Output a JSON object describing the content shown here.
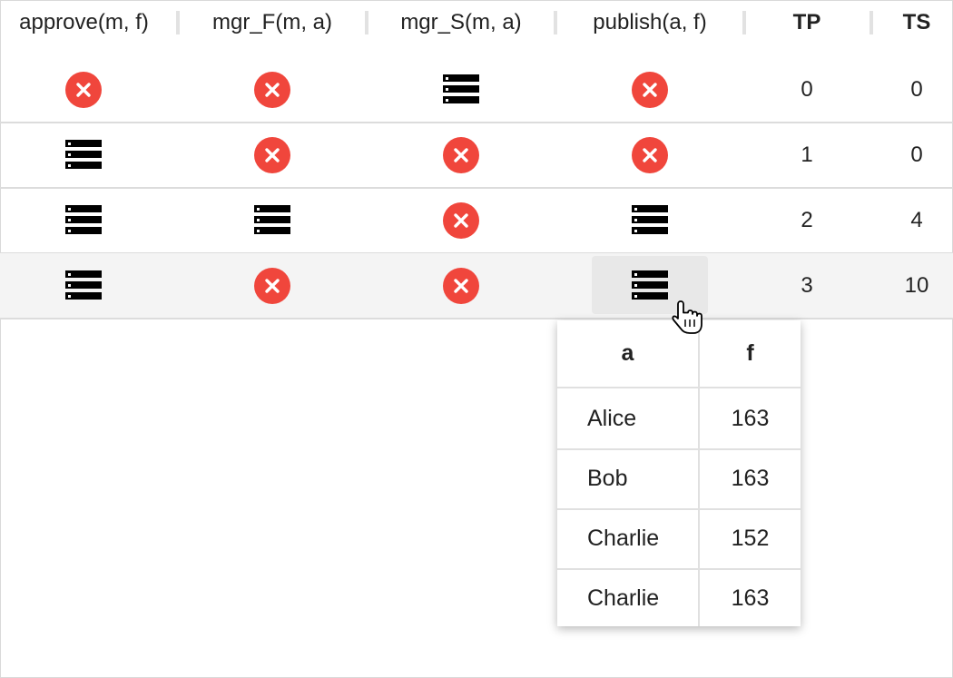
{
  "columns": [
    {
      "label": "approve(m, f)",
      "bold": false
    },
    {
      "label": "mgr_F(m, a)",
      "bold": false
    },
    {
      "label": "mgr_S(m, a)",
      "bold": false
    },
    {
      "label": "publish(a, f)",
      "bold": false
    },
    {
      "label": "TP",
      "bold": true
    },
    {
      "label": "TS",
      "bold": true
    }
  ],
  "rows": [
    {
      "cells": [
        "x-circle-icon",
        "x-circle-icon",
        "list-icon",
        "x-circle-icon"
      ],
      "tp": "0",
      "ts": "0"
    },
    {
      "cells": [
        "list-icon",
        "x-circle-icon",
        "x-circle-icon",
        "x-circle-icon"
      ],
      "tp": "1",
      "ts": "0"
    },
    {
      "cells": [
        "list-icon",
        "list-icon",
        "x-circle-icon",
        "list-icon"
      ],
      "tp": "2",
      "ts": "4"
    },
    {
      "cells": [
        "list-icon",
        "x-circle-icon",
        "x-circle-icon",
        "list-icon"
      ],
      "tp": "3",
      "ts": "10"
    }
  ],
  "popup": {
    "headers": [
      "a",
      "f"
    ],
    "rows": [
      [
        "Alice",
        "163"
      ],
      [
        "Bob",
        "163"
      ],
      [
        "Charlie",
        "152"
      ],
      [
        "Charlie",
        "163"
      ]
    ]
  },
  "colors": {
    "error": "#f0463c",
    "hover_row": "#f4f4f4",
    "border": "#dcdcdc"
  }
}
